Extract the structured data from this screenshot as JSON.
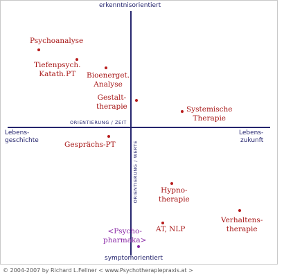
{
  "poles": {
    "top": "erkenntnisorientiert",
    "bottom": "symptomorientiert",
    "left": "Lebens-\ngeschichte",
    "right": "Lebens-\nzukunft"
  },
  "axis_labels": {
    "horizontal": "ORIENTIERUNG / ZEIT",
    "vertical": "ORIENTIERUNG / WERTE"
  },
  "therapies": [
    {
      "id": "psychoanalyse",
      "label": "Psychoanalyse"
    },
    {
      "id": "tiefenpsych",
      "label": "Tiefenpsych.\nKatath.PT"
    },
    {
      "id": "bioenerget",
      "label": "Bioenerget.\nAnalyse"
    },
    {
      "id": "gestalt",
      "label": "Gestalt-\ntherapie"
    },
    {
      "id": "systemische",
      "label": "Systemische\nTherapie"
    },
    {
      "id": "gespraechs",
      "label": "Gesprächs-PT"
    },
    {
      "id": "hypno",
      "label": "Hypno-\ntherapie"
    },
    {
      "id": "at-nlp",
      "label": "AT, NLP"
    },
    {
      "id": "verhaltens",
      "label": "Verhaltens-\ntherapie"
    },
    {
      "id": "psychopharmaka",
      "label": "<Psycho-\npharmaka>"
    }
  ],
  "colors": {
    "axis": "#26266e",
    "therapy_text": "#a81818",
    "psychopharmaka_text": "#8a2aa6"
  },
  "footer": {
    "copyright": "© 2004-2007 by Richard L.Fellner < www.Psychotherapiepraxis.at >"
  }
}
